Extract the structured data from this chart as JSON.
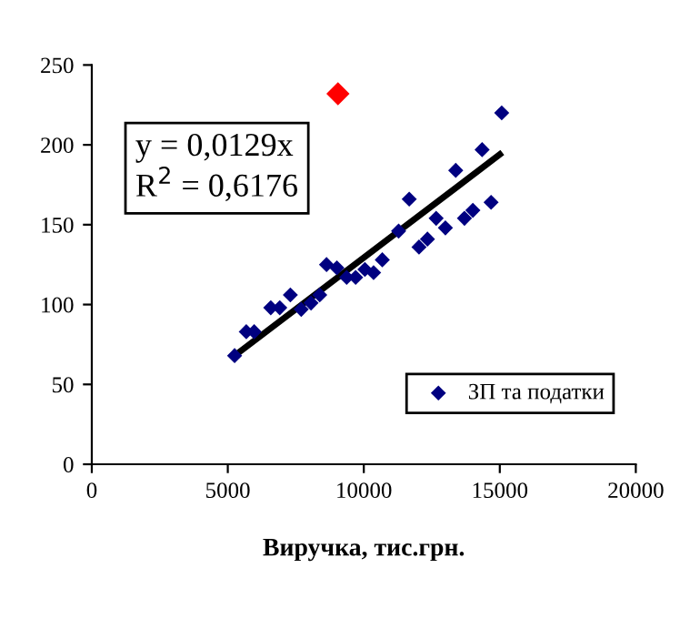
{
  "chart_data": {
    "type": "scatter",
    "xlabel": "Виручка, тис.грн.",
    "xlim": [
      0,
      20000
    ],
    "ylim": [
      0,
      250
    ],
    "xticks": [
      0,
      5000,
      10000,
      15000,
      20000
    ],
    "yticks": [
      0,
      50,
      100,
      150,
      200,
      250
    ],
    "grid": false,
    "legend": "bottom right",
    "annotations": [
      "y = 0,0129x\nR$^{2}$ = 0,6176"
    ],
    "series": [
      {
        "name": "ЗП та податки",
        "marker": "diamond",
        "color": "#000080",
        "x": [
          5250,
          5680,
          5970,
          6580,
          6910,
          7300,
          7700,
          8060,
          8380,
          8630,
          9010,
          9370,
          9700,
          10040,
          10360,
          10680,
          11280,
          11670,
          12030,
          12340,
          12660,
          13000,
          13380,
          13700,
          14010,
          14350,
          14680,
          15070
        ],
        "values": [
          68,
          83,
          83,
          98,
          98,
          106,
          97,
          101,
          106,
          125,
          123,
          117,
          117,
          122,
          120,
          128,
          146,
          166,
          136,
          141,
          154,
          148,
          184,
          154,
          159,
          197,
          164,
          220
        ]
      },
      {
        "type": "scatter",
        "marker": "diamond",
        "color": "#ff0000",
        "x": [
          9050
        ],
        "values": [
          232
        ]
      },
      {
        "type": "line",
        "marker": "none",
        "color": "#000000",
        "x": [
          5250,
          15000
        ],
        "values": [
          68,
          194
        ]
      }
    ]
  }
}
